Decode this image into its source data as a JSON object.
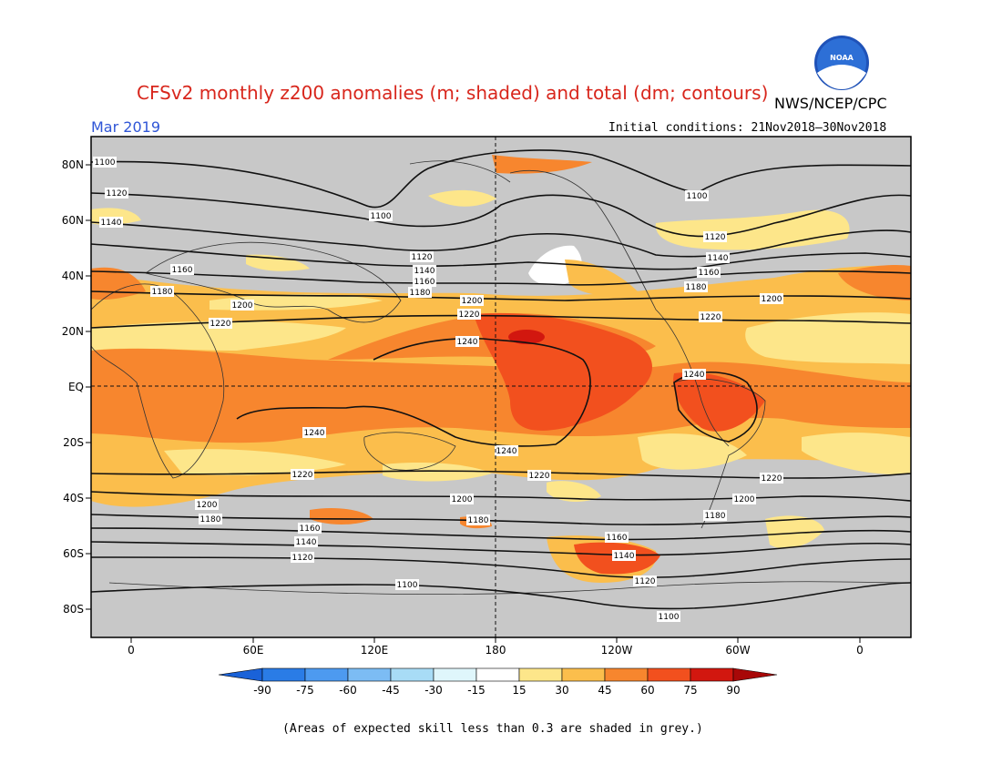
{
  "header": {
    "title": "CFSv2 monthly z200 anomalies (m; shaded) and total (dm; contours)",
    "agency": "NWS/NCEP/CPC",
    "month": "Mar 2019",
    "initial_conditions": "Initial conditions: 21Nov2018–30Nov2018"
  },
  "logo": {
    "text": "NOAA"
  },
  "footnote": "(Areas of expected skill less than 0.3 are shaded in grey.)",
  "map": {
    "lat_labels": [
      "80N",
      "60N",
      "40N",
      "20N",
      "EQ",
      "20S",
      "40S",
      "60S",
      "80S"
    ],
    "lon_labels": [
      "0",
      "60E",
      "120E",
      "180",
      "120W",
      "60W",
      "0"
    ],
    "contour_labels": [
      "1100",
      "1120",
      "1140",
      "1160",
      "1180",
      "1200",
      "1220",
      "1240"
    ]
  },
  "colorbar": {
    "ticks": [
      "-90",
      "-75",
      "-60",
      "-45",
      "-30",
      "-15",
      "15",
      "30",
      "45",
      "60",
      "75",
      "90"
    ],
    "colors": [
      "#1a62d8",
      "#2a7ce6",
      "#4d9af0",
      "#7cbcf4",
      "#a8dcf6",
      "#dff6fb",
      "#ffffff",
      "#fde68a",
      "#fbbe4c",
      "#f7862e",
      "#f2501e",
      "#d2170f",
      "#a80808"
    ],
    "grey": "#c8c8c8"
  }
}
